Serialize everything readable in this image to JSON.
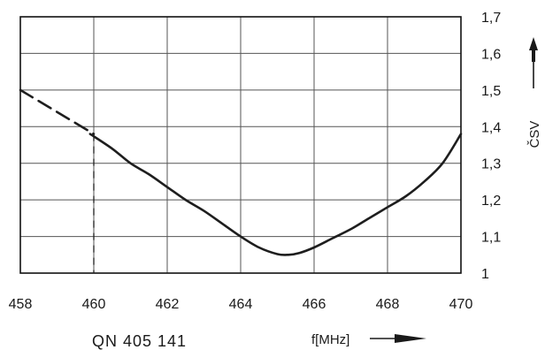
{
  "chart_data": {
    "type": "line",
    "title": "",
    "xlabel": "f[MHz]",
    "ylabel": "ČSV",
    "xlim": [
      458,
      470
    ],
    "ylim": [
      1.0,
      1.7
    ],
    "x_ticks": [
      "458",
      "460",
      "462",
      "464",
      "466",
      "468",
      "470"
    ],
    "y_ticks": [
      "1",
      "1,1",
      "1,2",
      "1,3",
      "1,4",
      "1,5",
      "1,6",
      "1,7"
    ],
    "grid": true,
    "legend": "none",
    "series": [
      {
        "style": "dashed",
        "x": [
          458.0,
          458.5,
          459.0,
          459.5,
          460.0
        ],
        "y": [
          1.5,
          1.47,
          1.44,
          1.41,
          1.38
        ]
      },
      {
        "style": "solid",
        "x": [
          459.9,
          460.5,
          461.0,
          461.5,
          462.0,
          462.5,
          463.0,
          463.5,
          464.0,
          464.5,
          465.0,
          465.3,
          465.6,
          466.0,
          466.5,
          467.0,
          467.5,
          468.0,
          468.5,
          469.0,
          469.5,
          470.0
        ],
        "y": [
          1.38,
          1.34,
          1.3,
          1.27,
          1.235,
          1.2,
          1.17,
          1.135,
          1.1,
          1.07,
          1.052,
          1.05,
          1.055,
          1.07,
          1.095,
          1.12,
          1.15,
          1.18,
          1.21,
          1.25,
          1.3,
          1.38
        ]
      }
    ],
    "annotations": [
      "QN 405 141"
    ],
    "colors": {
      "curve": "#1e1e1e",
      "grid": "#555555",
      "frame": "#111111"
    }
  }
}
